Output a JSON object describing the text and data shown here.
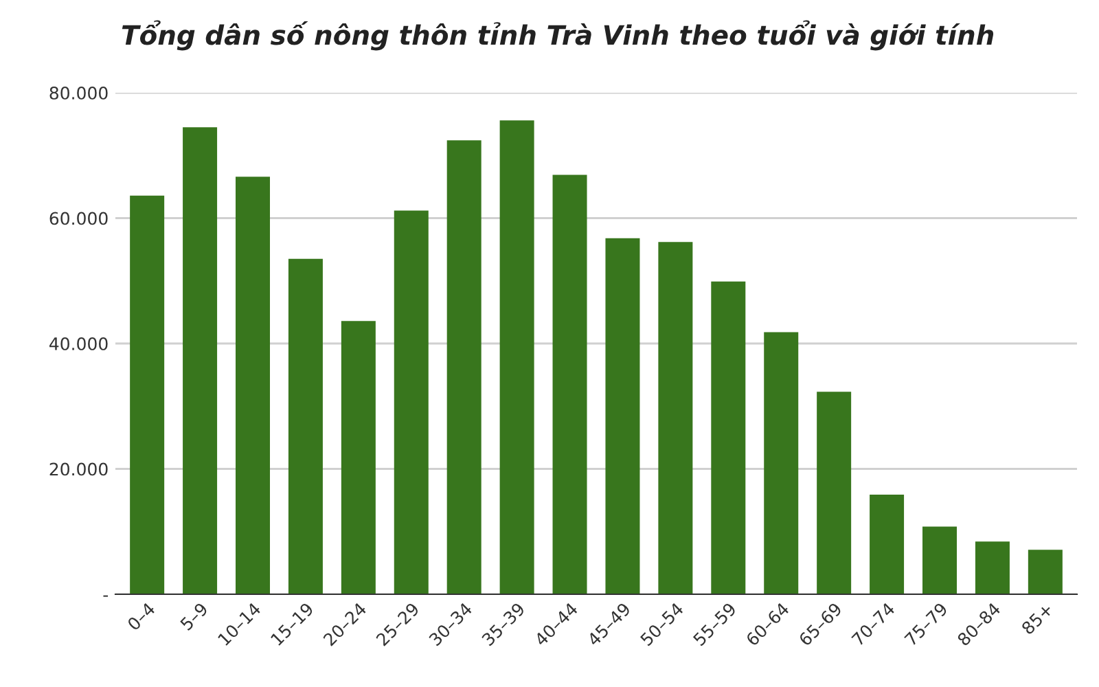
{
  "chart_data": {
    "type": "bar",
    "title": "Tổng dân số nông thôn tỉnh Trà Vinh theo tuổi và giới tính",
    "categories": [
      "0–4",
      "5–9",
      "10–14",
      "15–19",
      "20–24",
      "25–29",
      "30–34",
      "35–39",
      "40–44",
      "45–49",
      "50–54",
      "55–59",
      "60–64",
      "65–69",
      "70–74",
      "75–79",
      "80–84",
      "85+"
    ],
    "values": [
      63600,
      74500,
      66600,
      53500,
      43600,
      61200,
      72400,
      75600,
      66900,
      56800,
      56200,
      49900,
      41800,
      32300,
      15900,
      10800,
      8400,
      7100
    ],
    "color": "#38761d",
    "ylim": [
      0,
      80000
    ],
    "yticks": [
      {
        "value": 0,
        "label": "-"
      },
      {
        "value": 20000,
        "label": "20.000"
      },
      {
        "value": 40000,
        "label": "40.000"
      },
      {
        "value": 60000,
        "label": "60.000"
      },
      {
        "value": 80000,
        "label": "80.000"
      }
    ],
    "grid": "y",
    "legend": false
  }
}
